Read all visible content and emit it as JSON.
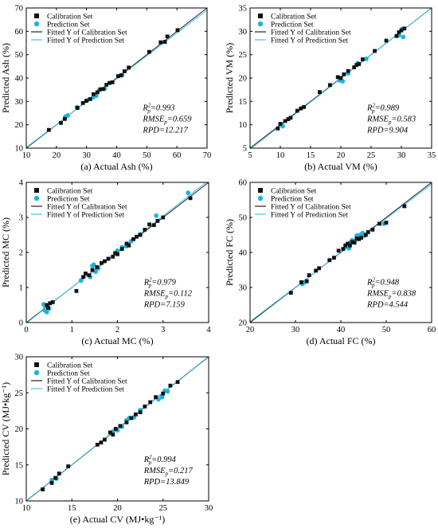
{
  "colors": {
    "calibration_marker": "#111111",
    "prediction_marker": "#1cb4e0",
    "fit_calibration_line": "#222222",
    "fit_prediction_line": "#3cc4e8",
    "axis": "#000000",
    "background": "#ffffff"
  },
  "legend_labels": {
    "calibration": "Calibration Set",
    "prediction": "Prediction Set",
    "fit_calibration": "Fitted Y of Calibration Set",
    "fit_prediction": "Fitted Y of Prediction Set"
  },
  "chart_data": [
    {
      "id": "a",
      "type": "scatter",
      "xlabel": "(a) Actual Ash (%)",
      "ylabel": "Predicted  Ash (%)",
      "xlim": [
        10,
        70
      ],
      "ylim": [
        10,
        70
      ],
      "xticks": [
        "10",
        "20",
        "30",
        "40",
        "50",
        "60",
        "70"
      ],
      "yticks": [
        "10",
        "20",
        "30",
        "40",
        "50",
        "60",
        "70"
      ],
      "stats": {
        "r2": "R²p=0.993",
        "rmse": "RMSEp=0.659",
        "rpd": "RPD=12.217"
      },
      "legend_position": "top-left",
      "fit_calibration": {
        "slope": 1.0,
        "intercept": 0.0
      },
      "fit_prediction": {
        "slope": 0.98,
        "intercept": 0.5
      },
      "calibration_points": [
        [
          17.5,
          17.8
        ],
        [
          21.5,
          20.8
        ],
        [
          22.8,
          22.5
        ],
        [
          27,
          27.2
        ],
        [
          28.8,
          29.3
        ],
        [
          29.9,
          30.2
        ],
        [
          31.2,
          31.0
        ],
        [
          32.3,
          33.1
        ],
        [
          33.6,
          33.9
        ],
        [
          34.6,
          35.2
        ],
        [
          35.6,
          35.3
        ],
        [
          36.6,
          37.1
        ],
        [
          37.6,
          37.9
        ],
        [
          38.6,
          38.2
        ],
        [
          40.5,
          40.8
        ],
        [
          41.5,
          41.2
        ],
        [
          42.6,
          42.9
        ],
        [
          44,
          44.5
        ],
        [
          50.8,
          51.2
        ],
        [
          54.6,
          55.3
        ],
        [
          56,
          55.5
        ],
        [
          56.8,
          57.8
        ],
        [
          60.2,
          60.5
        ]
      ],
      "prediction_points": [
        [
          23,
          23.5
        ],
        [
          23.8,
          24
        ],
        [
          26.8,
          27.5
        ],
        [
          30.2,
          30.5
        ],
        [
          32.2,
          31.8
        ],
        [
          33.2,
          32.4
        ],
        [
          34.2,
          34.8
        ],
        [
          36,
          35.5
        ],
        [
          41.8,
          41.2
        ]
      ]
    },
    {
      "id": "b",
      "type": "scatter",
      "xlabel": "(b) Actual VM (%)",
      "ylabel": "Predicted  VM (%)",
      "xlim": [
        5,
        35
      ],
      "ylim": [
        5,
        35
      ],
      "xticks": [
        "5",
        "10",
        "15",
        "20",
        "25",
        "30",
        "35"
      ],
      "yticks": [
        "5",
        "10",
        "15",
        "20",
        "25",
        "30",
        "35"
      ],
      "stats": {
        "r2": "R²p=0.989",
        "rmse": "RMSEp=0.583",
        "rpd": "RPD=9.904"
      },
      "legend_position": "top-left",
      "fit_calibration": {
        "slope": 1.0,
        "intercept": 0.0
      },
      "fit_prediction": {
        "slope": 1.01,
        "intercept": -0.3
      },
      "calibration_points": [
        [
          9.6,
          9.2
        ],
        [
          10,
          10.2
        ],
        [
          10.8,
          10.8
        ],
        [
          11.3,
          11.2
        ],
        [
          11.7,
          11.5
        ],
        [
          12.8,
          13
        ],
        [
          13.4,
          13.5
        ],
        [
          13.9,
          13.8
        ],
        [
          16.5,
          17
        ],
        [
          18.2,
          18.5
        ],
        [
          19.5,
          20.2
        ],
        [
          20,
          20
        ],
        [
          20.5,
          20.8
        ],
        [
          21.2,
          21.5
        ],
        [
          22.2,
          22.3
        ],
        [
          22.6,
          22.8
        ],
        [
          23,
          23
        ],
        [
          23.6,
          24
        ],
        [
          25.6,
          25.8
        ],
        [
          27.5,
          28
        ],
        [
          29.2,
          29
        ],
        [
          29.6,
          29.8
        ],
        [
          30,
          30.2
        ],
        [
          30.5,
          30.6
        ]
      ],
      "prediction_points": [
        [
          10.2,
          10
        ],
        [
          10.4,
          9.7
        ],
        [
          19.8,
          19.5
        ],
        [
          20.3,
          19.3
        ],
        [
          21.2,
          21
        ],
        [
          22.8,
          23.2
        ],
        [
          24.2,
          24.1
        ],
        [
          29.6,
          29.2
        ],
        [
          30.1,
          30.5
        ],
        [
          30.3,
          28.8
        ]
      ]
    },
    {
      "id": "c",
      "type": "scatter",
      "xlabel": "(c) Actual MC (%)",
      "ylabel": "Predicted  MC (%)",
      "xlim": [
        0,
        4
      ],
      "ylim": [
        0,
        4
      ],
      "xticks": [
        "0",
        "1",
        "2",
        "3",
        "4"
      ],
      "yticks": [
        "0",
        "1",
        "2",
        "3",
        "4"
      ],
      "stats": {
        "r2": "R²p=0.979",
        "rmse": "RMSEp=0.112",
        "rpd": "RPD=7.159"
      },
      "legend_position": "top-left",
      "fit_calibration": {
        "slope": 1.0,
        "intercept": 0.0
      },
      "fit_prediction": {
        "slope": 1.02,
        "intercept": -0.02
      },
      "calibration_points": [
        [
          0.45,
          0.5
        ],
        [
          0.48,
          0.42
        ],
        [
          0.52,
          0.55
        ],
        [
          0.58,
          0.58
        ],
        [
          1.1,
          0.9
        ],
        [
          1.25,
          1.3
        ],
        [
          1.3,
          1.4
        ],
        [
          1.38,
          1.35
        ],
        [
          1.45,
          1.5
        ],
        [
          1.55,
          1.58
        ],
        [
          1.65,
          1.7
        ],
        [
          1.72,
          1.75
        ],
        [
          1.8,
          1.82
        ],
        [
          1.9,
          1.88
        ],
        [
          1.95,
          1.98
        ],
        [
          2.0,
          1.95
        ],
        [
          2.1,
          2.1
        ],
        [
          2.2,
          2.25
        ],
        [
          2.25,
          2.2
        ],
        [
          2.35,
          2.38
        ],
        [
          2.42,
          2.45
        ],
        [
          2.5,
          2.5
        ],
        [
          2.6,
          2.65
        ],
        [
          2.7,
          2.8
        ],
        [
          2.8,
          2.78
        ],
        [
          2.88,
          2.9
        ],
        [
          3.0,
          3.0
        ],
        [
          3.6,
          3.55
        ]
      ],
      "prediction_points": [
        [
          0.38,
          0.52
        ],
        [
          0.4,
          0.35
        ],
        [
          0.42,
          0.45
        ],
        [
          0.45,
          0.3
        ],
        [
          0.5,
          0.4
        ],
        [
          1.2,
          1.2
        ],
        [
          1.4,
          1.3
        ],
        [
          1.45,
          1.62
        ],
        [
          1.48,
          1.65
        ],
        [
          1.52,
          1.45
        ],
        [
          1.58,
          1.55
        ],
        [
          2.0,
          2.05
        ],
        [
          2.1,
          2.15
        ],
        [
          2.2,
          2.18
        ],
        [
          2.3,
          2.32
        ],
        [
          2.5,
          2.52
        ],
        [
          2.85,
          3.05
        ],
        [
          3.55,
          3.7
        ]
      ]
    },
    {
      "id": "d",
      "type": "scatter",
      "xlabel": "(d) Actual FC (%)",
      "ylabel": "Predicted  FC (%)",
      "xlim": [
        20,
        60
      ],
      "ylim": [
        20,
        60
      ],
      "xticks": [
        "20",
        "30",
        "40",
        "50",
        "60"
      ],
      "yticks": [
        "20",
        "30",
        "40",
        "50",
        "60"
      ],
      "stats": {
        "r2": "R²p=0.948",
        "rmse": "RMSEp=0.838",
        "rpd": "RPD=4.544"
      },
      "legend_position": "top-left",
      "fit_calibration": {
        "slope": 1.0,
        "intercept": 0.0
      },
      "fit_prediction": {
        "slope": 0.98,
        "intercept": 0.7
      },
      "calibration_points": [
        [
          29,
          28.5
        ],
        [
          31.3,
          31.5
        ],
        [
          32.5,
          31.8
        ],
        [
          33,
          33.5
        ],
        [
          34.5,
          34.8
        ],
        [
          35.2,
          35.5
        ],
        [
          37.5,
          37.8
        ],
        [
          38.5,
          38.5
        ],
        [
          39.5,
          40.5
        ],
        [
          40.5,
          41
        ],
        [
          41,
          42
        ],
        [
          41.5,
          42.5
        ],
        [
          42,
          42
        ],
        [
          42.5,
          43
        ],
        [
          43,
          42.8
        ],
        [
          43.5,
          44
        ],
        [
          44,
          43.8
        ],
        [
          44.5,
          44.2
        ],
        [
          45.5,
          45
        ],
        [
          46,
          45.8
        ],
        [
          47,
          46.5
        ],
        [
          48.5,
          48.2
        ],
        [
          50,
          48.5
        ],
        [
          54,
          53.2
        ]
      ],
      "prediction_points": [
        [
          31.5,
          31
        ],
        [
          32,
          31.5
        ],
        [
          41,
          41.5
        ],
        [
          41.8,
          41.2
        ],
        [
          42,
          42.8
        ],
        [
          42.5,
          43.5
        ],
        [
          43,
          43.2
        ],
        [
          43.5,
          44.8
        ],
        [
          44,
          44.8
        ],
        [
          44.5,
          45.2
        ],
        [
          44.8,
          45.5
        ],
        [
          45.2,
          44.8
        ],
        [
          49.5,
          48.2
        ]
      ]
    },
    {
      "id": "e",
      "type": "scatter",
      "xlabel": "(e) Actual CV (MJ•kg⁻¹)",
      "ylabel": "Predicted  CV (MJ•kg⁻¹)",
      "xlim": [
        10,
        30
      ],
      "ylim": [
        10,
        30
      ],
      "xticks": [
        "10",
        "15",
        "20",
        "25",
        "30"
      ],
      "yticks": [
        "10",
        "15",
        "20",
        "25",
        "30"
      ],
      "stats": {
        "r2": "R²p=0.994",
        "rmse": "RMSEp=0.217",
        "rpd": "RPD=13.849"
      },
      "legend_position": "top-left",
      "fit_calibration": {
        "slope": 1.0,
        "intercept": 0.0
      },
      "fit_prediction": {
        "slope": 1.0,
        "intercept": 0.05
      },
      "calibration_points": [
        [
          11.8,
          11.6
        ],
        [
          12.8,
          12.5
        ],
        [
          13.2,
          13.2
        ],
        [
          13.6,
          13.8
        ],
        [
          14.6,
          14.8
        ],
        [
          17.8,
          17.8
        ],
        [
          18.2,
          18.1
        ],
        [
          18.6,
          18.5
        ],
        [
          19.2,
          19.5
        ],
        [
          19.5,
          19.2
        ],
        [
          19.8,
          20.0
        ],
        [
          20.3,
          20.4
        ],
        [
          21,
          20.9
        ],
        [
          21.5,
          21.5
        ],
        [
          22,
          22
        ],
        [
          22.5,
          22.3
        ],
        [
          23,
          23.1
        ],
        [
          23.6,
          23.7
        ],
        [
          24.2,
          24.4
        ],
        [
          25,
          24.9
        ],
        [
          25.8,
          26
        ],
        [
          26.6,
          26.5
        ]
      ],
      "prediction_points": [
        [
          12.8,
          12.9
        ],
        [
          13.3,
          13.1
        ],
        [
          19.5,
          19.6
        ],
        [
          20,
          19.8
        ],
        [
          20.5,
          20.3
        ],
        [
          21,
          21.2
        ],
        [
          21.3,
          21.5
        ],
        [
          21.8,
          21.6
        ],
        [
          22.5,
          22.6
        ],
        [
          24.5,
          24.1
        ],
        [
          24.9,
          24.4
        ],
        [
          25.2,
          25.3
        ],
        [
          25.5,
          25.2
        ]
      ]
    }
  ]
}
